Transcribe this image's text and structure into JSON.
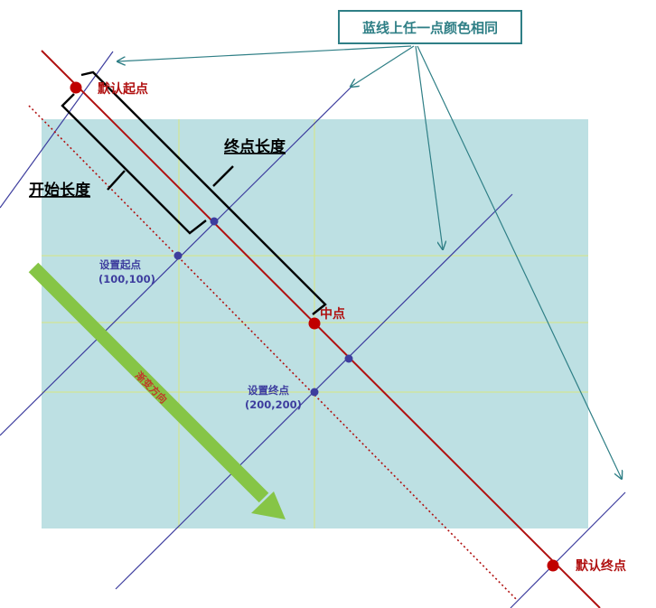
{
  "callout": {
    "text": "蓝线上任一点颜色相同"
  },
  "labels": {
    "default_start": "默认起点",
    "default_end": "默认终点",
    "midpoint": "中点",
    "end_length": "终点长度",
    "start_length": "开始长度",
    "set_start": "设置起点",
    "set_start_coord": "(100,100)",
    "set_end": "设置终点",
    "set_end_coord": "(200,200)",
    "gradient_direction": "渐变方向"
  },
  "colors": {
    "canvas_fill": "#bde0e3",
    "red_line": "#b01010",
    "blue_line": "#3d3d9e",
    "grid_line": "#d7e680",
    "callout": "#2f7f86",
    "arrow_green": "#86c546",
    "bracket": "#000000"
  }
}
